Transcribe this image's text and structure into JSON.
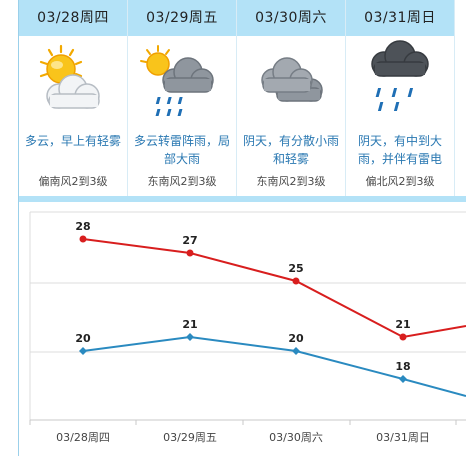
{
  "days": [
    {
      "date": "03/28周四",
      "icon": "partly-cloudy-sun-icon",
      "desc": "多云，早上有轻雾",
      "wind": "偏南风2到3级"
    },
    {
      "date": "03/29周五",
      "icon": "sun-thunder-rain-icon",
      "desc": "多云转雷阵雨，局部大雨",
      "wind": "东南风2到3级"
    },
    {
      "date": "03/30周六",
      "icon": "overcast-cloud-icon",
      "desc": "阴天，有分散小雨和轻雾",
      "wind": "东南风2到3级"
    },
    {
      "date": "03/31周日",
      "icon": "dark-cloud-rain-icon",
      "desc": "阴天，有中到大雨，并伴有雷电",
      "wind": "偏北风2到3级"
    }
  ],
  "colors": {
    "header_bg": "#b3e2f7",
    "desc_text": "#2a78b2",
    "high_line": "#d81e1e",
    "low_line": "#2a8ac0"
  },
  "chart_data": {
    "type": "line",
    "categories": [
      "03/28周四",
      "03/29周五",
      "03/30周六",
      "03/31周日"
    ],
    "series": [
      {
        "values": [
          28,
          27,
          25,
          21
        ],
        "color": "#d81e1e"
      },
      {
        "values": [
          20,
          21,
          20,
          18
        ],
        "color": "#2a8ac0"
      }
    ],
    "grid": true
  }
}
